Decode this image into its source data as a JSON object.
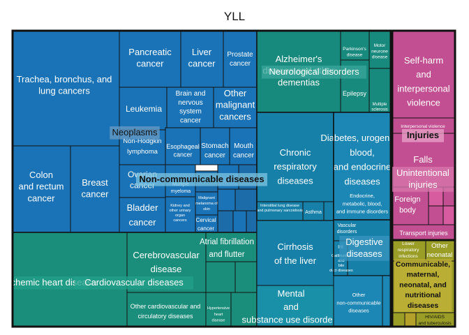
{
  "chart_data": {
    "type": "treemap",
    "title": "YLL",
    "colors": {
      "non_communicable": "#1A73B6",
      "non_communicable_dark": "#1B6CA8",
      "cardiovascular": "#1A8E7A",
      "cardiovascular_light": "#23A08B",
      "neurological": "#17897D",
      "respiratory": "#1680A8",
      "diabetes": "#1C86B4",
      "mental": "#1A8FA8",
      "injuries": "#C24F91",
      "injuries_light": "#D65C9F",
      "communicable": "#9A9D26",
      "communicable_light": "#B3A12A"
    },
    "groups": [
      {
        "name": "Non-communicable diseases",
        "children": [
          {
            "name": "Neoplasms",
            "children": [
              {
                "name": "Trachea, bronchus, and lung cancers"
              },
              {
                "name": "Colon and rectum cancer"
              },
              {
                "name": "Breast cancer"
              },
              {
                "name": "Pancreatic cancer"
              },
              {
                "name": "Liver cancer"
              },
              {
                "name": "Prostate cancer"
              },
              {
                "name": "Leukemia"
              },
              {
                "name": "Brain and nervous system cancer"
              },
              {
                "name": "Other malignant cancers"
              },
              {
                "name": "Non-Hodgkin lymphoma"
              },
              {
                "name": "Esophageal cancer"
              },
              {
                "name": "Stomach cancer"
              },
              {
                "name": "Mouth cancer"
              },
              {
                "name": "Ovarian cancer"
              },
              {
                "name": "Multiple myeloma"
              },
              {
                "name": "Bladder cancer"
              },
              {
                "name": "Kidney and other urinary organ cancers"
              },
              {
                "name": "Malignant melanoma of skin"
              },
              {
                "name": "Cervical cancer"
              }
            ]
          },
          {
            "name": "Cardiovascular diseases",
            "children": [
              {
                "name": "Ischemic heart disease"
              },
              {
                "name": "Cerebrovascular disease"
              },
              {
                "name": "Atrial fibrillation and flutter"
              },
              {
                "name": "Other cardiovascular and circulatory diseases"
              },
              {
                "name": "Hypertensive heart disease"
              }
            ]
          },
          {
            "name": "Neurological disorders",
            "children": [
              {
                "name": "Alzheimer's disease and other dementias"
              },
              {
                "name": "Parkinson's disease"
              },
              {
                "name": "Motor neurone disease"
              },
              {
                "name": "Epilepsy"
              },
              {
                "name": "Multiple sclerosis"
              }
            ]
          },
          {
            "name": "Chronic respiratory diseases",
            "children": [
              {
                "name": "Interstitial lung disease and pulmonary sarcoidosis"
              },
              {
                "name": "Asthma"
              }
            ]
          },
          {
            "name": "Diabetes, urogenital, blood, and endocrine diseases",
            "children": [
              {
                "name": "Endocrine, metabolic, blood, and immune disorders"
              }
            ]
          },
          {
            "name": "Cirrhosis of the liver",
            "children": []
          },
          {
            "name": "Digestive diseases",
            "children": [
              {
                "name": "Gallbladder and bile duct diseases"
              }
            ]
          },
          {
            "name": "Mental and substance use disorders",
            "children": []
          },
          {
            "name": "Other non-communicable diseases",
            "children": []
          }
        ]
      },
      {
        "name": "Injuries",
        "children": [
          {
            "name": "Self-harm and interpersonal violence"
          },
          {
            "name": "Interpersonal violence"
          },
          {
            "name": "Unintentional injuries"
          },
          {
            "name": "Foreign body"
          },
          {
            "name": "Transport injuries"
          }
        ]
      },
      {
        "name": "Communicable, maternal, neonatal, and nutritional diseases",
        "children": [
          {
            "name": "Lower respiratory infections"
          },
          {
            "name": "Other neonatal"
          },
          {
            "name": "HIV/AIDS and tuberculosis"
          }
        ]
      }
    ]
  },
  "labels": {
    "lung": "Trachea, bronchus, and lung cancers",
    "colon": "Colon and rectum cancer",
    "breast": "Breast cancer",
    "pancreatic": "Pancreatic cancer",
    "liver_cancer": "Liver cancer",
    "prostate": "Prostate cancer",
    "leukemia": "Leukemia",
    "brain": "Brain and nervous system cancer",
    "other_malignant": "Other malignant cancers",
    "nhl": "Non-Hodgkin lymphoma",
    "esophageal": "Esophageal cancer",
    "stomach": "Stomach cancer",
    "mouth": "Mouth cancer",
    "ovarian": "Ovarian cancer",
    "myeloma": "Multiple myeloma",
    "bladder": "Bladder cancer",
    "kidney": "Kidney and other urinary organ cancers",
    "melanoma": "Malignant melanoma of skin",
    "cervical": "Cervical cancer",
    "neoplasms": "Neoplasms",
    "ncd": "Non-communicable diseases",
    "ischemic": "Ischemic heart disease",
    "cardio": "Cardiovascular diseases",
    "cerebro": "Cerebrovascular disease",
    "afib": "Atrial fibrillation and flutter",
    "other_cardio": "Other cardiovascular and circulatory diseases",
    "hypertensive": "Hypertensive heart disease",
    "alzheimer": "Alzheimer's disease and other dementias",
    "neuro": "Neurological disorders",
    "parkinson": "Parkinson's disease",
    "mnd": "Motor neurone disease",
    "epilepsy": "Epilepsy",
    "ms": "Multiple sclerosis",
    "chronic_resp": "Chronic respiratory diseases",
    "ild": "Interstitial lung disease and pulmonary sarcoidosis",
    "asthma": "Asthma",
    "diabetes": "Diabetes, urogenital, blood, and endocrine diseases",
    "endocrine": "Endocrine, metabolic, blood, and immune disorders",
    "cirrhosis": "Cirrhosis of the liver",
    "digestive": "Digestive diseases",
    "gallbladder": "Gallbladder and bile duct diseases",
    "int": "Int",
    "vascular": "Vascular disorders",
    "mental": "Mental and substance use disorders",
    "other_ncd": "Other non-communicable diseases",
    "selfharm": "Self-harm and interpersonal violence",
    "interpersonal": "Interpersonal violence",
    "injuries": "Injuries",
    "falls": "Falls",
    "unintentional": "Unintentional injuries",
    "foreign": "Foreign body",
    "transport": "Transport injuries",
    "lri": "Lower respiratory infections",
    "other_neonatal": "Other neonatal",
    "communicable": "Communicable, maternal, neonatal, and nutritional diseases",
    "hiv": "HIV/AIDS and tuberculosis"
  }
}
